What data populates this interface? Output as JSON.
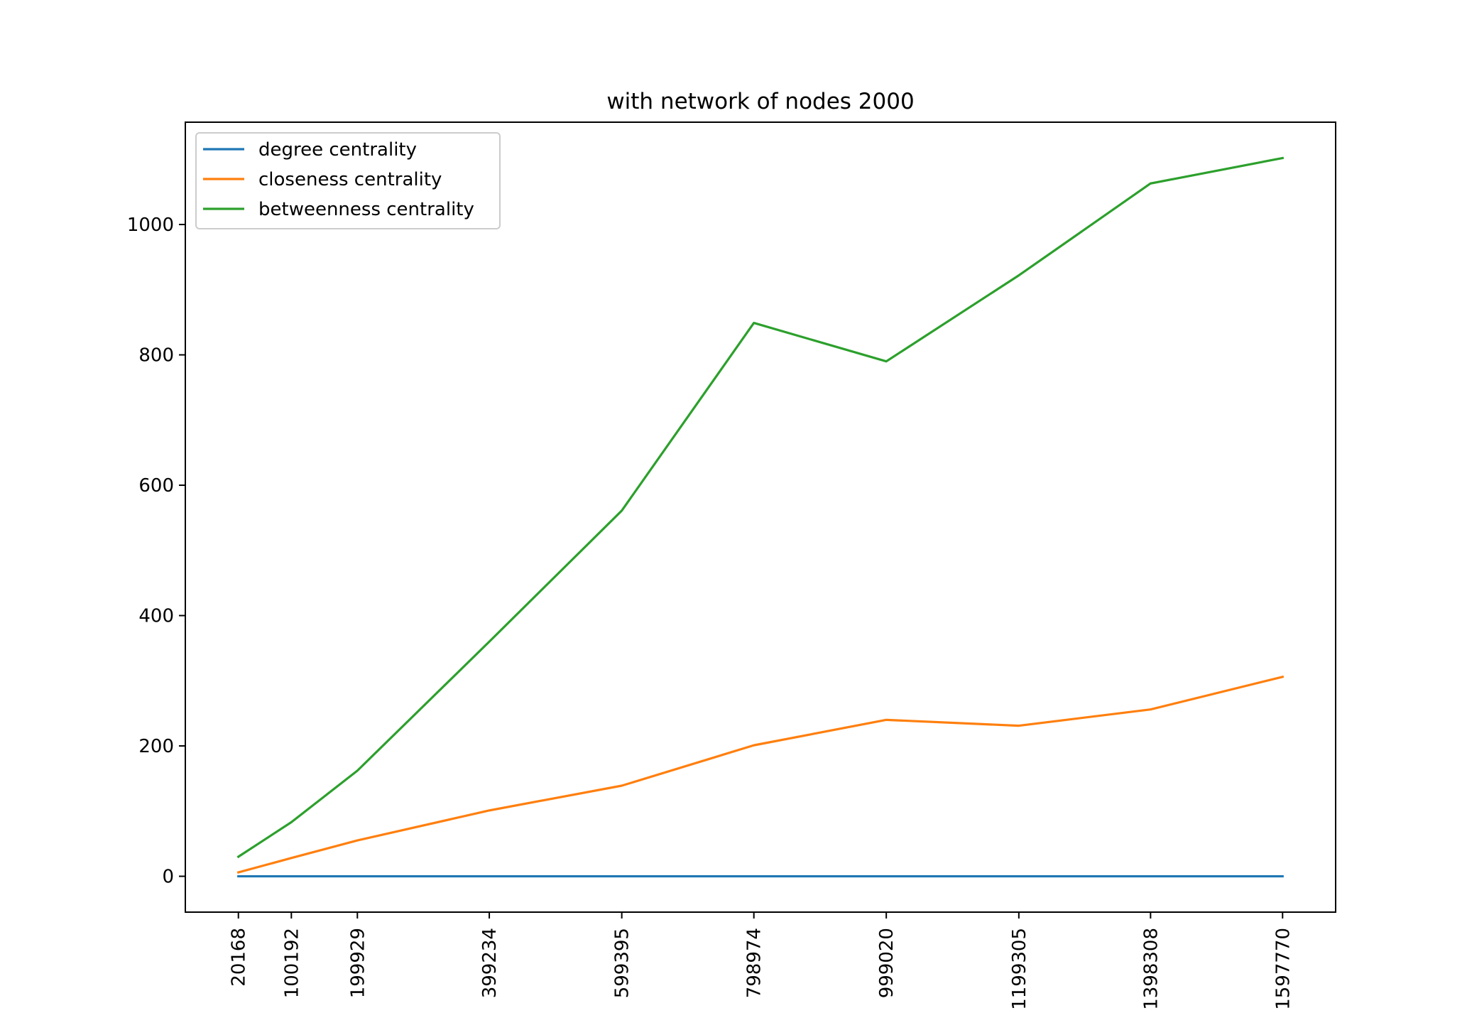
{
  "chart_data": {
    "type": "line",
    "title": "with network of nodes 2000",
    "xlabel": "",
    "ylabel": "",
    "x": [
      20168,
      100192,
      199929,
      399234,
      599395,
      798974,
      999020,
      1199305,
      1398308,
      1597770
    ],
    "x_tick_labels": [
      "20168",
      "100192",
      "199929",
      "399234",
      "599395",
      "798974",
      "999020",
      "1199305",
      "1398308",
      "1597770"
    ],
    "y_ticks": [
      0,
      200,
      400,
      600,
      800,
      1000
    ],
    "ylim": [
      -55,
      1157
    ],
    "xlim": [
      -60000,
      1677938
    ],
    "grid": false,
    "legend_position": "top-left",
    "series": [
      {
        "name": "degree centrality",
        "color": "#1f77b4",
        "values": [
          0,
          0,
          0,
          0,
          0,
          0,
          0,
          0,
          0,
          0
        ]
      },
      {
        "name": "closeness centrality",
        "color": "#ff7f0e",
        "values": [
          6,
          28,
          55,
          101,
          139,
          201,
          240,
          231,
          256,
          306
        ]
      },
      {
        "name": "betweenness centrality",
        "color": "#2ca02c",
        "values": [
          30,
          83,
          162,
          360,
          561,
          849,
          790,
          922,
          1063,
          1102
        ]
      }
    ]
  }
}
